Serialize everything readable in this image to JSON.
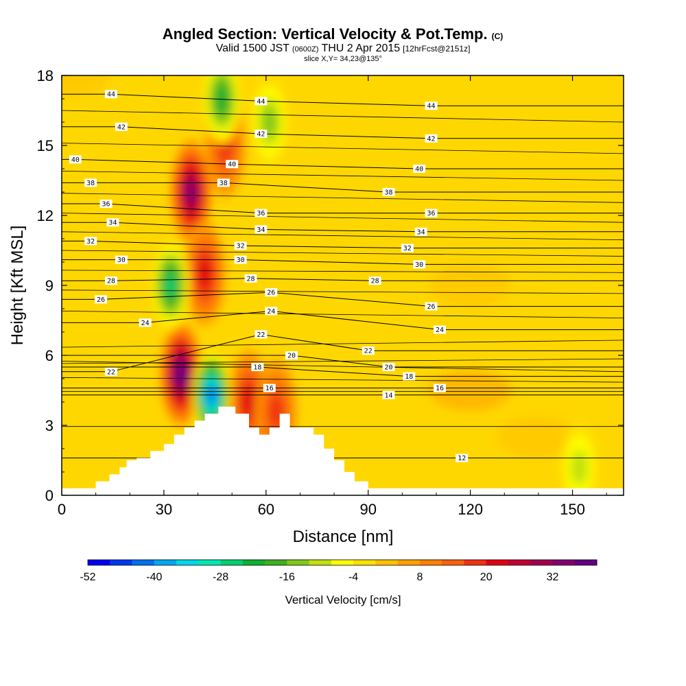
{
  "title": {
    "main": "Angled Section: Vertical Velocity & Pot.Temp.",
    "main_suffix": "(C)",
    "valid_pre": "Valid 1500 JST",
    "valid_zulu": "(0600Z)",
    "valid_post": "THU 2 Apr 2015",
    "forecast": "[12hrFcst@2151z]",
    "slice": "slice X,Y= 34,23@135°"
  },
  "colors": {
    "background_field": "#FFD700",
    "terrain": "#FFFFFF",
    "contour": "#000000"
  },
  "chart_data": {
    "type": "heatmap",
    "xlabel": "Distance [nm]",
    "ylabel": "Height [Kft MSL]",
    "xlim": [
      0,
      165
    ],
    "ylim": [
      0,
      18
    ],
    "x_ticks": [
      0,
      30,
      60,
      90,
      120,
      150
    ],
    "y_ticks": [
      0,
      3,
      6,
      9,
      12,
      15,
      18
    ],
    "grid": false,
    "colorbar": {
      "label": "Vertical Velocity [cm/s]",
      "min": -52,
      "max": 38,
      "step": 4,
      "tick_values": [
        -52,
        -40,
        -28,
        -16,
        -4,
        8,
        20,
        32
      ],
      "colors": [
        "#0000F0",
        "#0038F0",
        "#0070F0",
        "#00A8F0",
        "#00D8E8",
        "#00E8B0",
        "#00D070",
        "#10B030",
        "#40B020",
        "#80C818",
        "#C0E010",
        "#FFFF00",
        "#FFE000",
        "#FFC000",
        "#FFA000",
        "#FF8000",
        "#F86010",
        "#F03010",
        "#E00010",
        "#C00030",
        "#A00050",
        "#800070",
        "#600080"
      ]
    },
    "terrain_profile": {
      "x": [
        0,
        10,
        10,
        14,
        14,
        17,
        17,
        19,
        19,
        22,
        22,
        26,
        26,
        30,
        30,
        33,
        33,
        36,
        36,
        39,
        39,
        42,
        42,
        46,
        46,
        51,
        51,
        55,
        55,
        58,
        58,
        61,
        61,
        64,
        64,
        67,
        67,
        74,
        74,
        77,
        77,
        80,
        80,
        83,
        83,
        86,
        86,
        90,
        90,
        165
      ],
      "y": [
        0.3,
        0.3,
        0.6,
        0.6,
        0.9,
        0.9,
        1.2,
        1.2,
        1.5,
        1.5,
        1.6,
        1.6,
        1.9,
        1.9,
        2.2,
        2.2,
        2.6,
        2.6,
        2.9,
        2.9,
        3.2,
        3.2,
        3.5,
        3.5,
        3.8,
        3.8,
        3.5,
        3.5,
        2.9,
        2.9,
        2.6,
        2.6,
        2.9,
        2.9,
        3.5,
        3.5,
        2.9,
        2.9,
        2.6,
        2.6,
        2.0,
        2.0,
        1.5,
        1.5,
        1.0,
        1.0,
        0.6,
        0.6,
        0.3,
        0.3
      ]
    },
    "velocity_features": [
      {
        "kind": "updraft",
        "x": 35,
        "y": 5.2,
        "value": 36
      },
      {
        "kind": "updraft",
        "x": 38,
        "y": 13,
        "value": 30
      },
      {
        "kind": "updraft",
        "x": 42,
        "y": 9.5,
        "value": 20
      },
      {
        "kind": "updraft",
        "x": 48,
        "y": 15,
        "value": 16
      },
      {
        "kind": "updraft",
        "x": 55,
        "y": 4,
        "value": 18
      },
      {
        "kind": "updraft",
        "x": 63,
        "y": 3.6,
        "value": 16
      },
      {
        "kind": "downdraft",
        "x": 32,
        "y": 9,
        "value": -28
      },
      {
        "kind": "downdraft",
        "x": 44,
        "y": 4.3,
        "value": -45
      },
      {
        "kind": "downdraft",
        "x": 47,
        "y": 17,
        "value": -24
      },
      {
        "kind": "downdraft",
        "x": 61,
        "y": 16,
        "value": -16
      },
      {
        "kind": "downdraft",
        "x": 152,
        "y": 1.2,
        "value": -10
      }
    ],
    "contour_labels": [
      {
        "text": "44",
        "x": 14.5,
        "y": 17.2
      },
      {
        "text": "42",
        "x": 17.5,
        "y": 15.8
      },
      {
        "text": "40",
        "x": 4,
        "y": 14.4
      },
      {
        "text": "38",
        "x": 8.5,
        "y": 13.4
      },
      {
        "text": "36",
        "x": 13,
        "y": 12.5
      },
      {
        "text": "34",
        "x": 15,
        "y": 11.7
      },
      {
        "text": "32",
        "x": 8.5,
        "y": 10.9
      },
      {
        "text": "30",
        "x": 17.5,
        "y": 10.1
      },
      {
        "text": "28",
        "x": 14.5,
        "y": 9.2
      },
      {
        "text": "26",
        "x": 11.5,
        "y": 8.4
      },
      {
        "text": "24",
        "x": 24.5,
        "y": 7.4
      },
      {
        "text": "22",
        "x": 14.5,
        "y": 5.3
      },
      {
        "text": "44",
        "x": 58.5,
        "y": 16.9
      },
      {
        "text": "42",
        "x": 58.5,
        "y": 15.5
      },
      {
        "text": "40",
        "x": 50,
        "y": 14.2
      },
      {
        "text": "38",
        "x": 47.5,
        "y": 13.4
      },
      {
        "text": "36",
        "x": 58.5,
        "y": 12.1
      },
      {
        "text": "34",
        "x": 58.5,
        "y": 11.4
      },
      {
        "text": "32",
        "x": 52.5,
        "y": 10.7
      },
      {
        "text": "30",
        "x": 52.5,
        "y": 10.1
      },
      {
        "text": "28",
        "x": 55.5,
        "y": 9.3
      },
      {
        "text": "26",
        "x": 61.5,
        "y": 8.7
      },
      {
        "text": "24",
        "x": 61.5,
        "y": 7.9
      },
      {
        "text": "22",
        "x": 58.5,
        "y": 6.9
      },
      {
        "text": "20",
        "x": 67.5,
        "y": 6.0
      },
      {
        "text": "18",
        "x": 57.5,
        "y": 5.5
      },
      {
        "text": "16",
        "x": 61,
        "y": 4.6
      },
      {
        "text": "44",
        "x": 108.5,
        "y": 16.7
      },
      {
        "text": "42",
        "x": 108.5,
        "y": 15.3
      },
      {
        "text": "40",
        "x": 105,
        "y": 14.0
      },
      {
        "text": "38",
        "x": 96,
        "y": 13.0
      },
      {
        "text": "36",
        "x": 108.5,
        "y": 12.1
      },
      {
        "text": "34",
        "x": 105.5,
        "y": 11.3
      },
      {
        "text": "32",
        "x": 101.5,
        "y": 10.6
      },
      {
        "text": "30",
        "x": 105,
        "y": 9.9
      },
      {
        "text": "28",
        "x": 92,
        "y": 9.2
      },
      {
        "text": "26",
        "x": 108.5,
        "y": 8.1
      },
      {
        "text": "24",
        "x": 111,
        "y": 7.1
      },
      {
        "text": "22",
        "x": 90,
        "y": 6.2
      },
      {
        "text": "20",
        "x": 96,
        "y": 5.5
      },
      {
        "text": "18",
        "x": 102,
        "y": 5.1
      },
      {
        "text": "16",
        "x": 111,
        "y": 4.6
      },
      {
        "text": "14",
        "x": 96,
        "y": 4.3
      },
      {
        "text": "12",
        "x": 117.5,
        "y": 1.6
      }
    ]
  }
}
